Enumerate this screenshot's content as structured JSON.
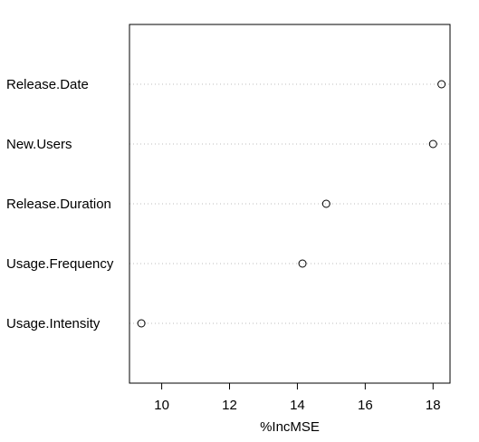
{
  "chart_data": {
    "type": "scatter",
    "title": "",
    "xlabel": "%IncMSE",
    "ylabel": "",
    "xlim": [
      9.05,
      18.5
    ],
    "x_ticks": [
      10,
      12,
      14,
      16,
      18
    ],
    "grid": "dotted horizontal guide lines",
    "categories": [
      "Release.Date",
      "New.Users",
      "Release.Duration",
      "Usage.Frequency",
      "Usage.Intensity"
    ],
    "values": [
      18.25,
      18.0,
      14.85,
      14.15,
      9.4
    ]
  }
}
